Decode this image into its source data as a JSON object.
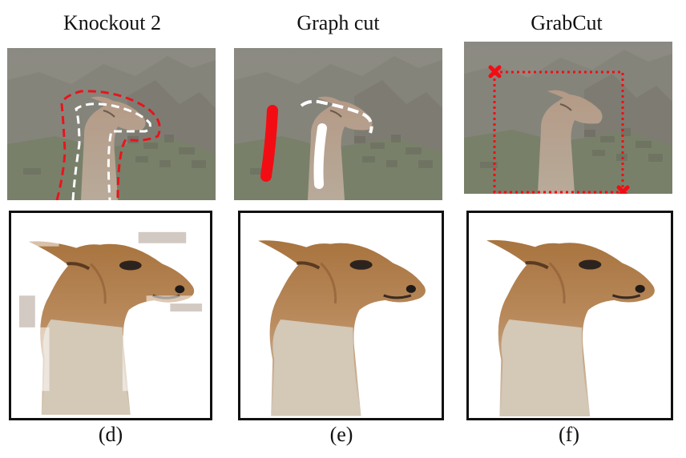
{
  "columns": [
    {
      "title": "Knockout 2",
      "caption": "(d)"
    },
    {
      "title": "Graph cut",
      "caption": "(e)"
    },
    {
      "title": "GrabCut",
      "caption": "(f)"
    }
  ]
}
